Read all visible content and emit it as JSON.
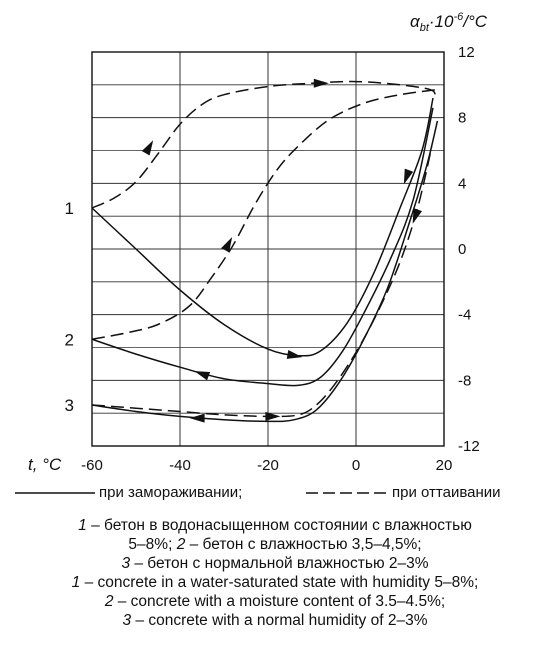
{
  "chart_data": {
    "type": "line",
    "ylabel_main": "α",
    "ylabel_sub": "bt",
    "ylabel_mid": "·10",
    "ylabel_exp": "-6",
    "ylabel_unit": "/°C",
    "xlabel": "t, °C",
    "xlim": [
      -60,
      20
    ],
    "ylim": [
      -12,
      12
    ],
    "xticks": [
      "-60",
      "-40",
      "-20",
      "0",
      "20"
    ],
    "xtick_values": [
      -60,
      -40,
      -20,
      0,
      20
    ],
    "yticks": [
      "12",
      "8",
      "4",
      "0",
      "-4",
      "-8",
      "-12"
    ],
    "ytick_values": [
      12,
      8,
      4,
      0,
      -4,
      -8,
      -12
    ],
    "grid": "horizontal",
    "curve_ids": [
      {
        "label": "1",
        "y": 2.5
      },
      {
        "label": "2",
        "y": -5.5
      },
      {
        "label": "3",
        "y": -9.5
      }
    ],
    "series": [
      {
        "id": "1",
        "style": "solid",
        "mode": "freezing",
        "points": [
          [
            -60,
            2.5
          ],
          [
            -50,
            0
          ],
          [
            -40,
            -2.5
          ],
          [
            -30,
            -4.6
          ],
          [
            -20,
            -6.1
          ],
          [
            -13,
            -6.5
          ],
          [
            -8,
            -6.2
          ],
          [
            -2,
            -4.5
          ],
          [
            4,
            -1.5
          ],
          [
            10,
            2.5
          ],
          [
            15,
            6
          ],
          [
            17.5,
            9.2
          ]
        ]
      },
      {
        "id": "1",
        "style": "dashed",
        "mode": "thawing",
        "points": [
          [
            -60,
            2.5
          ],
          [
            -55,
            3.1
          ],
          [
            -50,
            4.1
          ],
          [
            -45,
            5.8
          ],
          [
            -40,
            7.6
          ],
          [
            -35,
            8.8
          ],
          [
            -30,
            9.4
          ],
          [
            -20,
            9.9
          ],
          [
            -10,
            10.1
          ],
          [
            0,
            10.2
          ],
          [
            10,
            10
          ],
          [
            17,
            9.7
          ],
          [
            18,
            9.3
          ]
        ]
      },
      {
        "id": "2",
        "style": "solid",
        "mode": "freezing",
        "points": [
          [
            -60,
            -5.5
          ],
          [
            -50,
            -6.4
          ],
          [
            -40,
            -7.2
          ],
          [
            -30,
            -7.9
          ],
          [
            -20,
            -8.2
          ],
          [
            -13,
            -8.3
          ],
          [
            -8,
            -7.8
          ],
          [
            -3,
            -6.2
          ],
          [
            2,
            -3.8
          ],
          [
            8,
            -0.5
          ],
          [
            13,
            3
          ],
          [
            17.5,
            8.6
          ]
        ]
      },
      {
        "id": "2",
        "style": "dashed",
        "mode": "thawing",
        "points": [
          [
            -60,
            -5.5
          ],
          [
            -52,
            -5.1
          ],
          [
            -45,
            -4.6
          ],
          [
            -38,
            -3.5
          ],
          [
            -33,
            -1.8
          ],
          [
            -28,
            0.2
          ],
          [
            -23,
            2.7
          ],
          [
            -18,
            4.8
          ],
          [
            -13,
            6.3
          ],
          [
            -6,
            7.9
          ],
          [
            2,
            8.9
          ],
          [
            10,
            9.4
          ],
          [
            18,
            9.7
          ]
        ]
      },
      {
        "id": "3",
        "style": "solid",
        "mode": "freezing",
        "points": [
          [
            -60,
            -9.5
          ],
          [
            -50,
            -9.9
          ],
          [
            -40,
            -10.2
          ],
          [
            -30,
            -10.4
          ],
          [
            -20,
            -10.5
          ],
          [
            -14,
            -10.4
          ],
          [
            -9,
            -9.8
          ],
          [
            -4,
            -8.2
          ],
          [
            1,
            -5.9
          ],
          [
            7,
            -2.5
          ],
          [
            12,
            1.5
          ],
          [
            16,
            5
          ],
          [
            18.5,
            7.8
          ]
        ]
      },
      {
        "id": "3",
        "style": "dashed",
        "mode": "thawing",
        "points": [
          [
            -60,
            -9.5
          ],
          [
            -50,
            -9.7
          ],
          [
            -40,
            -9.9
          ],
          [
            -30,
            -10.1
          ],
          [
            -20,
            -10.2
          ],
          [
            -13,
            -10.1
          ],
          [
            -9,
            -9.5
          ],
          [
            -5,
            -8.3
          ],
          [
            0,
            -6.3
          ],
          [
            5,
            -3.8
          ],
          [
            10,
            -0.8
          ],
          [
            14,
            2.5
          ],
          [
            17.2,
            6.2
          ]
        ]
      }
    ],
    "legend": {
      "solid_label": "при замораживании;",
      "dashed_label": "при оттаивании",
      "placement": "bottom"
    }
  },
  "caption": {
    "line1_num": "1",
    "line1_text": " – бетон в водонасыщенном состоянии с влажностью",
    "line2_text_a": "5–8%; ",
    "line2_num": "2",
    "line2_text_b": " – бетон с влажностью 3,5–4,5%;",
    "line3_num": "3",
    "line3_text": " – бетон с нормальной влажностью 2–3%",
    "line4_num": "1",
    "line4_text": " – concrete in a water-saturated state with humidity 5–8%;",
    "line5_num": "2",
    "line5_text": " – concrete with a moisture content of 3.5–4.5%;",
    "line6_num": "3",
    "line6_text": " – concrete with a normal humidity of 2–3%"
  }
}
